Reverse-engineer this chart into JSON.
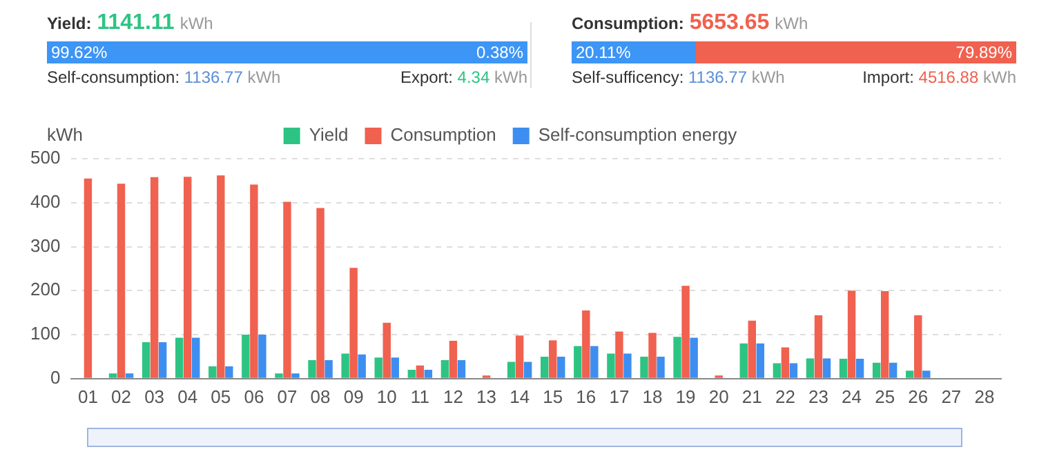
{
  "chart_data": {
    "type": "bar",
    "ylabel": "kWh",
    "categories": [
      "01",
      "02",
      "03",
      "04",
      "05",
      "06",
      "07",
      "08",
      "09",
      "10",
      "11",
      "12",
      "13",
      "14",
      "15",
      "16",
      "17",
      "18",
      "19",
      "20",
      "21",
      "22",
      "23",
      "24",
      "25",
      "26",
      "27",
      "28"
    ],
    "series": [
      {
        "name": "Yield",
        "color": "#2dc483",
        "values": [
          0,
          12,
          83,
          93,
          28,
          100,
          12,
          42,
          57,
          48,
          20,
          42,
          0,
          38,
          50,
          74,
          57,
          50,
          95,
          0,
          80,
          35,
          46,
          45,
          36,
          18,
          null,
          null
        ]
      },
      {
        "name": "Consumption",
        "color": "#f0614f",
        "values": [
          455,
          443,
          458,
          459,
          462,
          441,
          402,
          388,
          252,
          127,
          30,
          86,
          7,
          98,
          87,
          155,
          107,
          104,
          211,
          7,
          132,
          71,
          144,
          200,
          199,
          144,
          null,
          null
        ]
      },
      {
        "name": "Self-consumption energy",
        "color": "#3d8ef0",
        "values": [
          null,
          12,
          83,
          93,
          28,
          100,
          12,
          42,
          55,
          48,
          20,
          42,
          0,
          38,
          50,
          74,
          57,
          50,
          93,
          0,
          80,
          35,
          46,
          45,
          36,
          18,
          null,
          null
        ]
      }
    ],
    "ylim": [
      0,
      500
    ],
    "yticks": [
      0,
      100,
      200,
      300,
      400,
      500
    ],
    "grid": "y",
    "legend": "top",
    "annotations": [
      "Yield:",
      "1141.11",
      "kWh",
      "99.62%",
      "0.38%",
      "Self-consumption:",
      "1136.77",
      "kWh",
      "Export:",
      "4.34",
      "kWh",
      "Consumption:",
      "5653.65",
      "kWh",
      "20.11%",
      "79.89%",
      "Self-sufficency:",
      "1136.77",
      "kWh",
      "Import:",
      "4516.88",
      "kWh"
    ]
  }
}
